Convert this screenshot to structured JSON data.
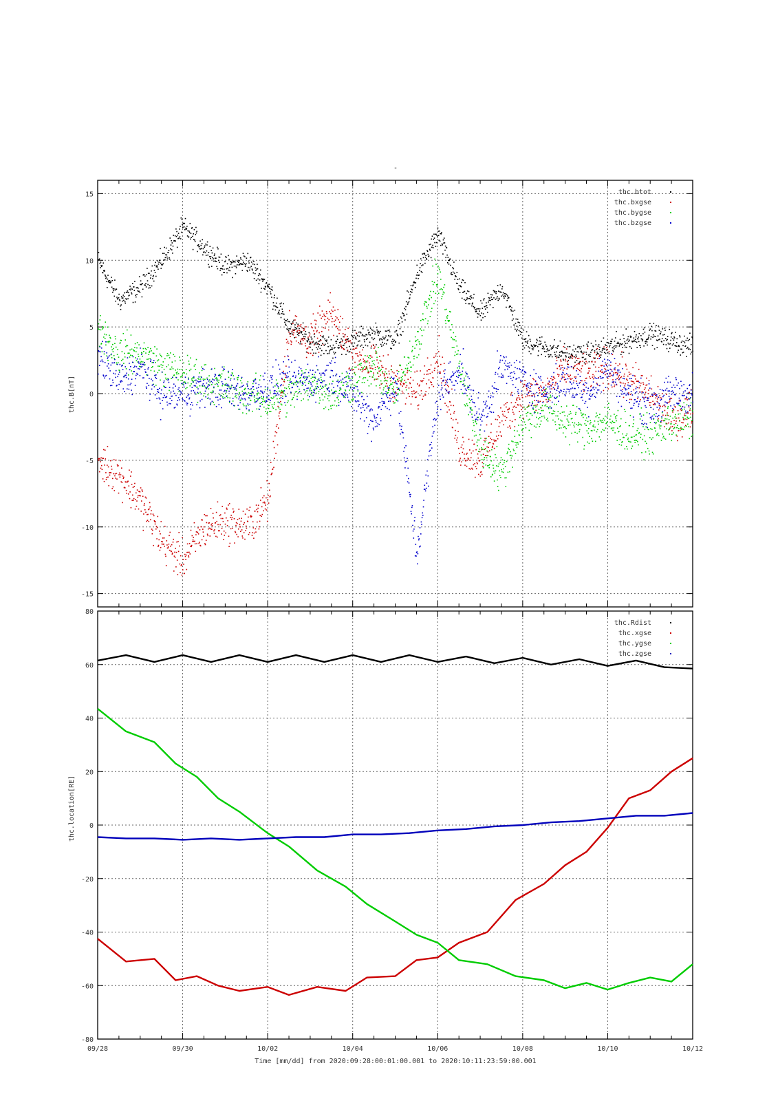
{
  "chart_data": [
    {
      "type": "scatter",
      "title": "-",
      "ylabel": "thc.B[nT]",
      "ylim": [
        -16,
        16
      ],
      "yticks": [
        15,
        10,
        5,
        0,
        -5,
        -10,
        -15
      ],
      "xlim": [
        "2020-09-28",
        "2020-10-12"
      ],
      "grid": true,
      "legend_placement": "top-right",
      "series": [
        {
          "name": "thc.btot",
          "color": "#000000",
          "x": [
            "09/28",
            "09/28 12h",
            "09/29",
            "09/29 12h",
            "09/30",
            "09/30 12h",
            "10/01",
            "10/01 12h",
            "10/02",
            "10/02 12h",
            "10/03",
            "10/03 12h",
            "10/04",
            "10/04 12h",
            "10/05",
            "10/05 12h",
            "10/06",
            "10/06 12h",
            "10/07",
            "10/07 12h",
            "10/08",
            "10/08 12h",
            "10/09",
            "10/09 12h",
            "10/10",
            "10/10 12h",
            "10/11",
            "10/11 12h",
            "10/12"
          ],
          "values": [
            10,
            7,
            8,
            10,
            12.5,
            11,
            9.5,
            10,
            8,
            5,
            4,
            3.5,
            4,
            4.5,
            4,
            9,
            12,
            8,
            6,
            8,
            4,
            3.5,
            3,
            3,
            3.5,
            4,
            4.5,
            4,
            3.5
          ]
        },
        {
          "name": "thc.bxgse",
          "color": "#cc0000",
          "x": [
            "09/28",
            "09/28 12h",
            "09/29",
            "09/29 12h",
            "09/30",
            "09/30 12h",
            "10/01",
            "10/01 12h",
            "10/02",
            "10/02 12h",
            "10/03",
            "10/03 12h",
            "10/04",
            "10/04 12h",
            "10/05",
            "10/05 12h",
            "10/06",
            "10/06 12h",
            "10/07",
            "10/07 12h",
            "10/08",
            "10/08 12h",
            "10/09",
            "10/09 12h",
            "10/10",
            "10/10 12h",
            "10/11",
            "10/11 12h",
            "10/12"
          ],
          "values": [
            -5,
            -6,
            -8,
            -11,
            -12.5,
            -10,
            -9.5,
            -10,
            -8,
            5,
            4,
            6,
            3,
            2,
            1,
            0,
            3,
            -4,
            -5,
            -2,
            0,
            0,
            2,
            1.5,
            2,
            1,
            0,
            -2,
            -1
          ]
        },
        {
          "name": "thc.bygse",
          "color": "#00cc00",
          "x": [
            "09/28",
            "09/28 12h",
            "09/29",
            "09/29 12h",
            "09/30",
            "09/30 12h",
            "10/01",
            "10/01 12h",
            "10/02",
            "10/02 12h",
            "10/03",
            "10/03 12h",
            "10/04",
            "10/04 12h",
            "10/05",
            "10/05 12h",
            "10/06",
            "10/06 12h",
            "10/07",
            "10/07 12h",
            "10/08",
            "10/08 12h",
            "10/09",
            "10/09 12h",
            "10/10",
            "10/10 12h",
            "10/11",
            "10/11 12h",
            "10/12"
          ],
          "values": [
            5,
            3,
            3,
            2,
            1.5,
            1,
            0.5,
            0,
            -0.5,
            0,
            1,
            0,
            1,
            2,
            0,
            4,
            9,
            2,
            -4,
            -6,
            -2,
            -1,
            -2,
            -2.5,
            -2,
            -3,
            -3,
            -2,
            -2
          ]
        },
        {
          "name": "thc.bzgse",
          "color": "#0000cc",
          "x": [
            "09/28",
            "09/28 12h",
            "09/29",
            "09/29 12h",
            "09/30",
            "09/30 12h",
            "10/01",
            "10/01 12h",
            "10/02",
            "10/02 12h",
            "10/03",
            "10/03 12h",
            "10/04",
            "10/04 12h",
            "10/05",
            "10/05 12h",
            "10/06",
            "10/06 12h",
            "10/07",
            "10/07 12h",
            "10/08",
            "10/08 12h",
            "10/09",
            "10/09 12h",
            "10/10",
            "10/10 12h",
            "10/11",
            "10/11 12h",
            "10/12"
          ],
          "values": [
            3,
            1,
            2,
            0,
            0,
            0.5,
            0.5,
            0,
            0.5,
            1,
            1,
            1.5,
            0,
            -2,
            1,
            -12,
            0,
            2,
            -2,
            2,
            1,
            0,
            1,
            0,
            2,
            0,
            -1,
            0,
            0
          ]
        }
      ]
    },
    {
      "type": "line",
      "ylabel": "thc.location[RE]",
      "ylim": [
        -80,
        80
      ],
      "yticks": [
        80,
        60,
        40,
        20,
        0,
        -20,
        -40,
        -60,
        -80
      ],
      "xlim": [
        "2020-09-28",
        "2020-10-12"
      ],
      "xticks": [
        "09/28",
        "09/30",
        "10/02",
        "10/04",
        "10/06",
        "10/08",
        "10/10",
        "10/12"
      ],
      "xlabel": "Time [mm/dd]  from 2020:09:28:00:01:00.001  to  2020:10:11:23:59:00.001",
      "grid": true,
      "legend_placement": "top-right",
      "series": [
        {
          "name": "thc.Rdist",
          "color": "#000000",
          "x": [
            "09/28",
            "09/28 16h",
            "09/29 08h",
            "09/30",
            "09/30 16h",
            "10/01 08h",
            "10/02",
            "10/02 16h",
            "10/03 08h",
            "10/04",
            "10/04 16h",
            "10/05 08h",
            "10/06",
            "10/06 16h",
            "10/07 08h",
            "10/08",
            "10/08 16h",
            "10/09 08h",
            "10/10",
            "10/10 16h",
            "10/11 08h",
            "10/12"
          ],
          "values": [
            61.5,
            63.5,
            61,
            63.5,
            61,
            63.5,
            61,
            63.5,
            61,
            63.5,
            61,
            63.5,
            61,
            63,
            60.5,
            62.5,
            60,
            62,
            59.5,
            61.5,
            59,
            58.5
          ]
        },
        {
          "name": "thc.xgse",
          "color": "#cc0000",
          "x": [
            "09/28",
            "09/28 16h",
            "09/29 08h",
            "09/29 20h",
            "09/30 08h",
            "09/30 20h",
            "10/01 08h",
            "10/02",
            "10/02 12h",
            "10/03 04h",
            "10/03 20h",
            "10/04 08h",
            "10/05",
            "10/05 12h",
            "10/06",
            "10/06 12h",
            "10/07 04h",
            "10/07 20h",
            "10/08 12h",
            "10/09",
            "10/09 12h",
            "10/10",
            "10/10 12h",
            "10/11",
            "10/11 12h",
            "10/12"
          ],
          "values": [
            -42.5,
            -51,
            -50,
            -58,
            -56.5,
            -60,
            -62,
            -60.5,
            -63.5,
            -60.5,
            -62,
            -57,
            -56.5,
            -50.5,
            -49.5,
            -44,
            -40,
            -28,
            -22,
            -15,
            -10,
            -1,
            10,
            13,
            20,
            25
          ]
        },
        {
          "name": "thc.ygse",
          "color": "#00cc00",
          "x": [
            "09/28",
            "09/28 16h",
            "09/29 08h",
            "09/29 20h",
            "09/30 08h",
            "09/30 20h",
            "10/01 08h",
            "10/02",
            "10/02 12h",
            "10/03 04h",
            "10/03 20h",
            "10/04 08h",
            "10/05",
            "10/05 12h",
            "10/06",
            "10/06 12h",
            "10/07 04h",
            "10/07 20h",
            "10/08 12h",
            "10/09",
            "10/09 12h",
            "10/10",
            "10/10 12h",
            "10/11",
            "10/11 12h",
            "10/12"
          ],
          "values": [
            43.5,
            35,
            31,
            23,
            18,
            10,
            5,
            -3,
            -8,
            -17,
            -23,
            -29.5,
            -36,
            -41,
            -44,
            -50.5,
            -52,
            -56.5,
            -58,
            -61,
            -59,
            -61.5,
            -59,
            -57,
            -58.5,
            -52
          ]
        },
        {
          "name": "thc.zgse",
          "color": "#0000bb",
          "x": [
            "09/28",
            "09/28 16h",
            "09/29 08h",
            "09/30",
            "09/30 16h",
            "10/01 08h",
            "10/02",
            "10/02 16h",
            "10/03 08h",
            "10/04",
            "10/04 16h",
            "10/05 08h",
            "10/06",
            "10/06 16h",
            "10/07 08h",
            "10/08",
            "10/08 16h",
            "10/09 08h",
            "10/10",
            "10/10 16h",
            "10/11 08h",
            "10/12"
          ],
          "values": [
            -4.5,
            -5,
            -5,
            -5.5,
            -5,
            -5.5,
            -5,
            -4.5,
            -4.5,
            -3.5,
            -3.5,
            -3,
            -2,
            -1.5,
            -0.5,
            0,
            1,
            1.5,
            2.5,
            3.5,
            3.5,
            4.5
          ]
        }
      ]
    }
  ]
}
